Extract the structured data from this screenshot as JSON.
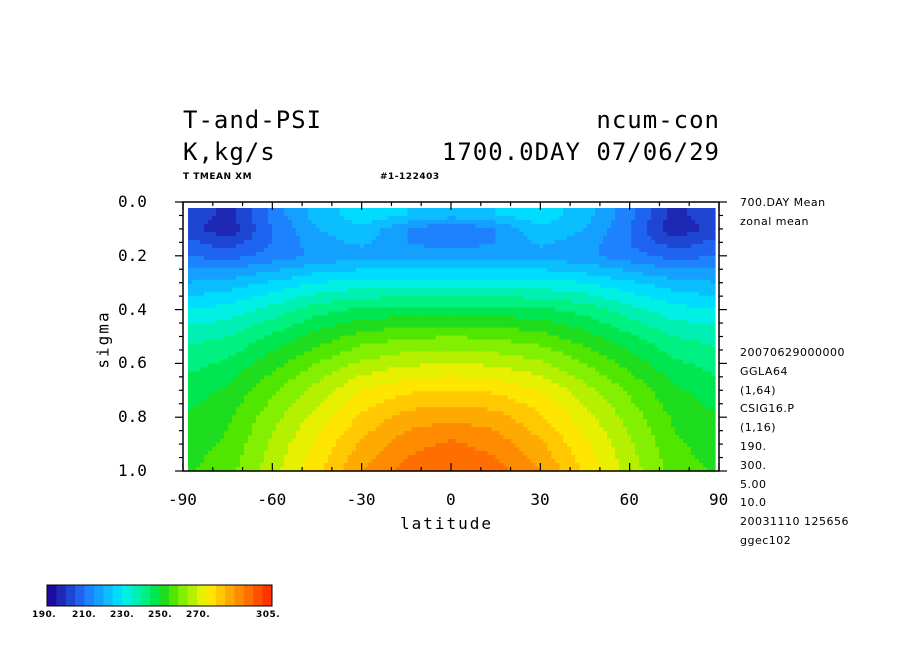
{
  "header": {
    "title_left": "T-and-PSI",
    "title_right": "ncum-con",
    "units": "K,kg/s",
    "time": "1700.0DAY 07/06/29",
    "var_label": "T TMEAN XM",
    "run_id": "#1-122403"
  },
  "side_info": {
    "top": [
      "700.DAY Mean",
      "zonal mean"
    ],
    "bottom": [
      "20070629000000",
      "GGLA64",
      "(1,64)",
      "CSIG16.P",
      "(1,16)",
      "190.",
      "300.",
      "5.00",
      "10.0",
      "20031110 125656",
      "ggec102"
    ]
  },
  "colorbar": {
    "labels": [
      "190.",
      "210.",
      "230.",
      "250.",
      "270.",
      "305."
    ],
    "colors": [
      "#1e0aa0",
      "#1e28b4",
      "#1e46d2",
      "#1e64f0",
      "#1e82ff",
      "#14a0ff",
      "#0abeff",
      "#00dcff",
      "#00f0e6",
      "#00f0b4",
      "#00f082",
      "#00e650",
      "#1edc1e",
      "#50e600",
      "#82f000",
      "#b4f000",
      "#e6f000",
      "#ffe600",
      "#ffc800",
      "#ffaa00",
      "#ff8c00",
      "#ff6e00",
      "#ff5000",
      "#ff3200"
    ]
  },
  "chart_data": {
    "type": "heatmap",
    "title": "T-and-PSI",
    "xlabel": "latitude",
    "ylabel": "sigma",
    "xlim": [
      -90,
      90
    ],
    "ylim": [
      0.0,
      1.0
    ],
    "y_inverted": true,
    "x_ticks": [
      "-90",
      "-60",
      "-30",
      "0",
      "30",
      "60",
      "90"
    ],
    "y_ticks": [
      "0.0",
      "0.2",
      "0.4",
      "0.6",
      "0.8",
      "1.0"
    ],
    "levels": [
      190,
      195,
      200,
      205,
      210,
      215,
      220,
      225,
      230,
      235,
      240,
      245,
      250,
      255,
      260,
      265,
      270,
      275,
      280,
      285,
      290,
      295,
      300,
      305
    ],
    "units": "K",
    "latitudes": [
      -90,
      -75,
      -60,
      -45,
      -30,
      -15,
      0,
      15,
      30,
      45,
      60,
      75,
      90
    ],
    "sigma": [
      0.05,
      0.1,
      0.15,
      0.2,
      0.3,
      0.4,
      0.5,
      0.6,
      0.7,
      0.8,
      0.9,
      1.0
    ],
    "values": [
      [
        205,
        198,
        212,
        222,
        228,
        225,
        222,
        225,
        228,
        222,
        212,
        198,
        205
      ],
      [
        203,
        196,
        210,
        220,
        224,
        215,
        210,
        215,
        224,
        220,
        210,
        196,
        203
      ],
      [
        207,
        202,
        210,
        218,
        221,
        215,
        212,
        215,
        221,
        218,
        210,
        202,
        207
      ],
      [
        210,
        208,
        212,
        216,
        218,
        218,
        218,
        218,
        218,
        216,
        212,
        208,
        210
      ],
      [
        220,
        222,
        226,
        230,
        232,
        232,
        232,
        232,
        232,
        230,
        226,
        222,
        220
      ],
      [
        230,
        232,
        237,
        243,
        246,
        247,
        247,
        247,
        246,
        243,
        237,
        232,
        230
      ],
      [
        238,
        240,
        246,
        252,
        257,
        259,
        260,
        259,
        257,
        252,
        246,
        240,
        238
      ],
      [
        243,
        246,
        253,
        260,
        266,
        269,
        270,
        269,
        266,
        260,
        253,
        246,
        243
      ],
      [
        247,
        251,
        259,
        267,
        275,
        279,
        280,
        279,
        275,
        267,
        259,
        251,
        247
      ],
      [
        250,
        254,
        263,
        272,
        281,
        287,
        289,
        287,
        281,
        272,
        263,
        254,
        250
      ],
      [
        252,
        256,
        266,
        276,
        286,
        293,
        296,
        293,
        286,
        276,
        266,
        256,
        252
      ],
      [
        254,
        258,
        268,
        279,
        290,
        297,
        300,
        297,
        290,
        279,
        268,
        258,
        254
      ]
    ]
  }
}
